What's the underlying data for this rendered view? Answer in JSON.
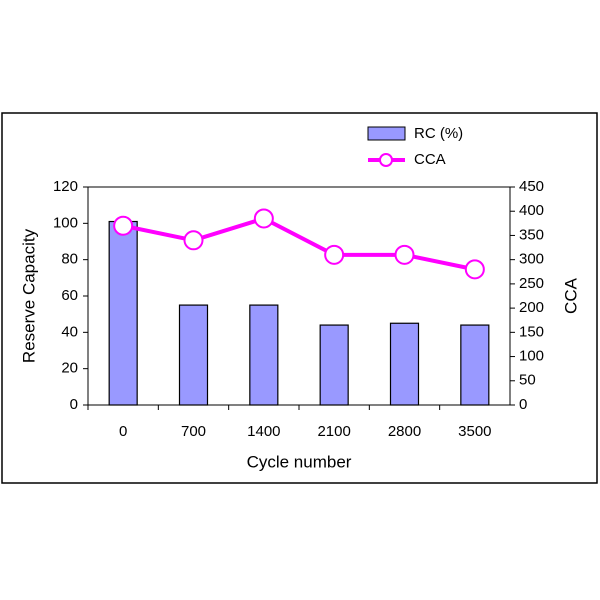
{
  "chart_data": {
    "type": "combo",
    "categories": [
      "0",
      "700",
      "1400",
      "2100",
      "2800",
      "3500"
    ],
    "series": [
      {
        "name": "RC (%)",
        "type": "bar",
        "color": "#9999ff",
        "values": [
          101,
          55,
          55,
          44,
          45,
          44
        ]
      },
      {
        "name": "CCA",
        "type": "line",
        "color": "#ff00ff",
        "axis": "y2",
        "values": [
          370,
          340,
          385,
          310,
          310,
          280
        ]
      }
    ],
    "xlabel": "Cycle number",
    "ylabel": "Reserve Capacity",
    "y2label": "CCA",
    "ylim": [
      0,
      120
    ],
    "yticks": [
      0,
      20,
      40,
      60,
      80,
      100,
      120
    ],
    "y2lim": [
      0,
      450
    ],
    "y2ticks": [
      0,
      50,
      100,
      150,
      200,
      250,
      300,
      350,
      400,
      450
    ],
    "grid": false,
    "legend": "top-right"
  }
}
